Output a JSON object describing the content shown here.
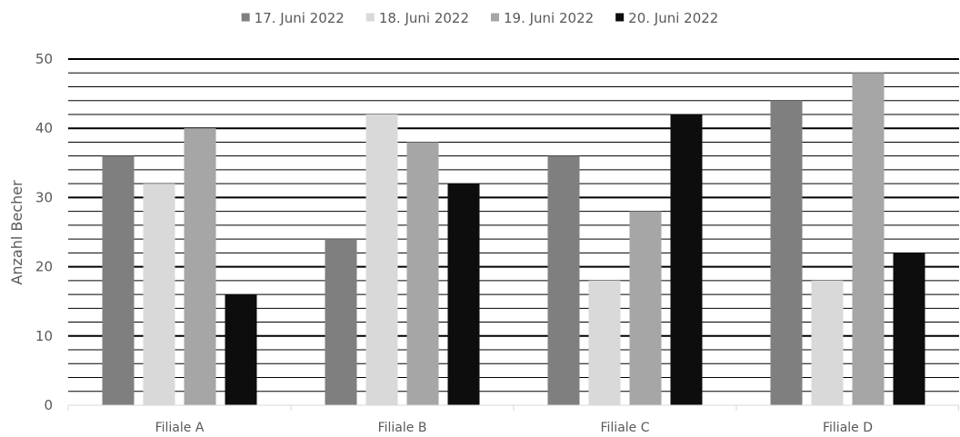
{
  "chart_data": {
    "type": "bar",
    "categories": [
      "Filiale A",
      "Filiale B",
      "Filiale C",
      "Filiale D"
    ],
    "series": [
      {
        "name": "17. Juni 2022",
        "values": [
          36,
          24,
          36,
          44
        ],
        "color": "#7f7f7f"
      },
      {
        "name": "18. Juni 2022",
        "values": [
          32,
          42,
          18,
          18
        ],
        "color": "#d9d9d9"
      },
      {
        "name": "19. Juni 2022",
        "values": [
          40,
          38,
          28,
          48
        ],
        "color": "#a6a6a6"
      },
      {
        "name": "20. Juni 2022",
        "values": [
          16,
          32,
          42,
          22
        ],
        "color": "#0d0d0d"
      }
    ],
    "ylabel": "Anzahl Becher",
    "xlabel": "",
    "title": "",
    "ylim": [
      0,
      50
    ],
    "yticks": [
      0,
      10,
      20,
      30,
      40,
      50
    ],
    "minor_step": 2,
    "grid": true,
    "legend_position": "top"
  }
}
